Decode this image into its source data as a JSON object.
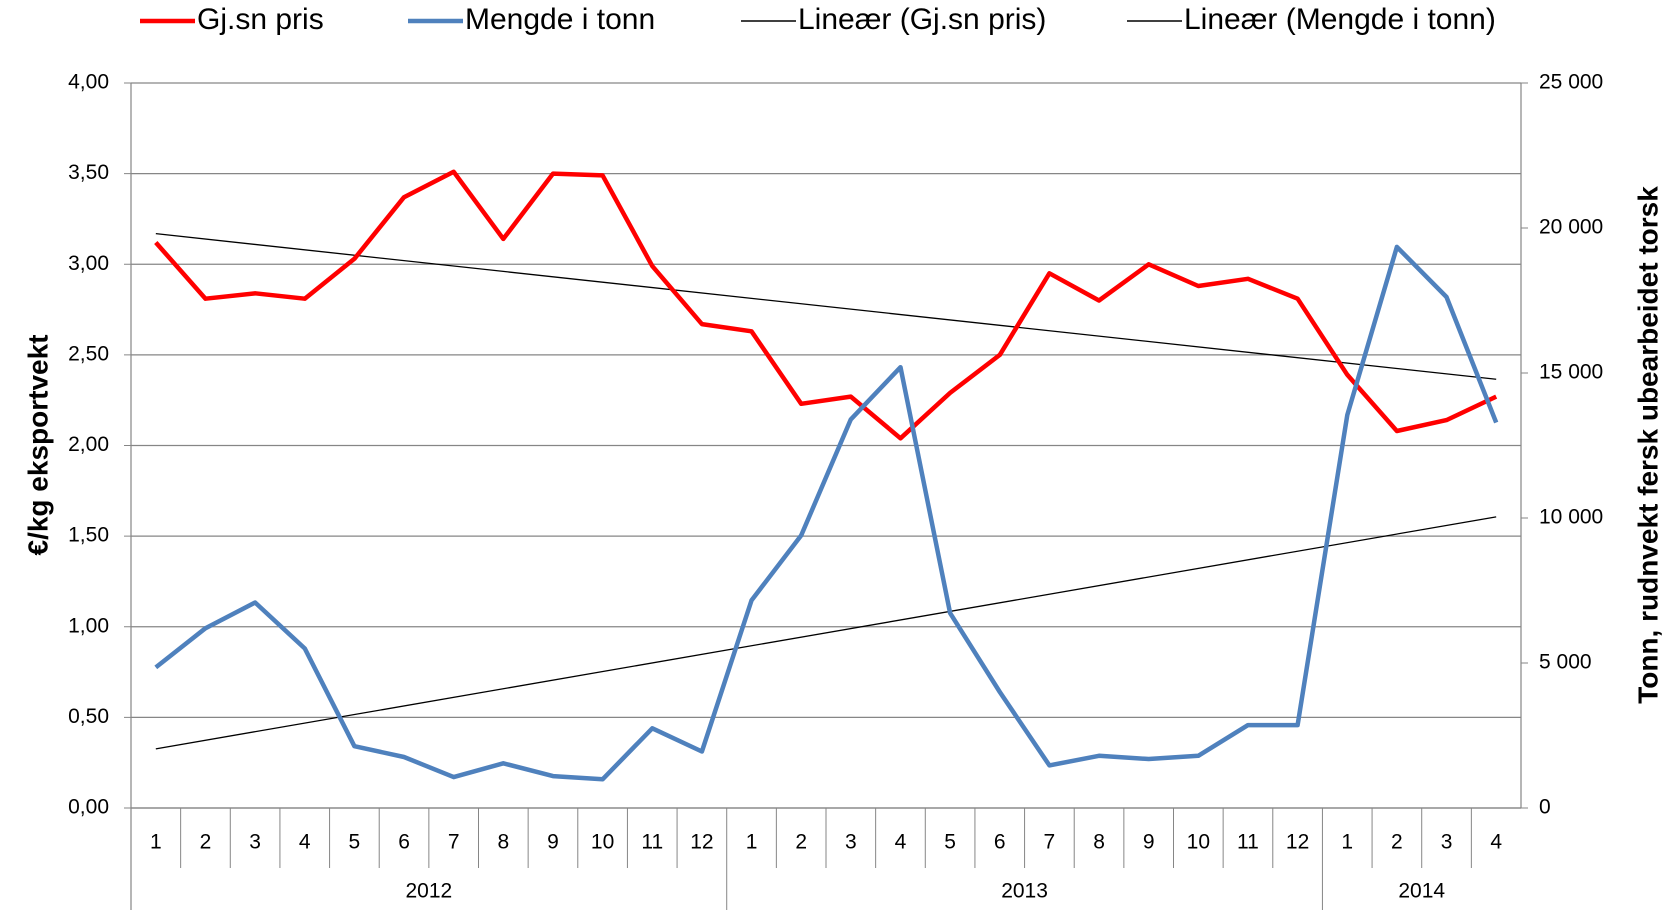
{
  "chart_data": {
    "type": "line",
    "categories": [
      "1",
      "2",
      "3",
      "4",
      "5",
      "6",
      "7",
      "8",
      "9",
      "10",
      "11",
      "12",
      "1",
      "2",
      "3",
      "4",
      "5",
      "6",
      "7",
      "8",
      "9",
      "10",
      "11",
      "12",
      "1",
      "2",
      "3",
      "4"
    ],
    "years": [
      "2012",
      "2013",
      "2014"
    ],
    "series": [
      {
        "name": "Gj.sn pris",
        "color": "#ff0000",
        "axis": "y",
        "values": [
          3.12,
          2.81,
          2.84,
          2.81,
          3.03,
          3.37,
          3.51,
          3.14,
          3.5,
          3.49,
          2.99,
          2.67,
          2.63,
          2.23,
          2.27,
          2.04,
          2.29,
          2.5,
          2.95,
          2.8,
          3.0,
          2.88,
          2.92,
          2.81,
          2.39,
          2.08,
          2.14,
          2.27
        ]
      },
      {
        "name": "Mengde i tonn",
        "color": "#4f81bd",
        "axis": "y2",
        "values": [
          4850,
          6200,
          7085,
          5500,
          2130,
          1760,
          1065,
          1540,
          1100,
          990,
          2750,
          1950,
          7160,
          9400,
          13400,
          15200,
          6720,
          4000,
          1470,
          1800,
          1690,
          1800,
          2860,
          2860,
          13550,
          19350,
          17620,
          13290
        ]
      }
    ],
    "trendlines": [
      {
        "name": "Lineær (Gj.sn pris)",
        "color": "#000000"
      },
      {
        "name": "Lineær (Mengde i tonn)",
        "color": "#000000"
      }
    ],
    "ylabel": "€/kg eksportvekt",
    "y2label": "Tonn, rudnvekt fersk ubearbeidet torsk",
    "ylim": [
      0,
      4
    ],
    "yticks": [
      {
        "value": 0,
        "label": "0,00"
      },
      {
        "value": 0.5,
        "label": "0,50"
      },
      {
        "value": 1,
        "label": "1,00"
      },
      {
        "value": 1.5,
        "label": "1,50"
      },
      {
        "value": 2,
        "label": "2,00"
      },
      {
        "value": 2.5,
        "label": "2,50"
      },
      {
        "value": 3,
        "label": "3,00"
      },
      {
        "value": 3.5,
        "label": "3,50"
      },
      {
        "value": 4,
        "label": "4,00"
      }
    ],
    "y2lim": [
      0,
      25000
    ],
    "y2ticks": [
      0,
      {
        "value": 5000,
        "label": "5 000"
      },
      {
        "value": 10000,
        "label": "10 000"
      },
      {
        "value": 15000,
        "label": "15 000"
      },
      {
        "value": 20000,
        "label": "20 000"
      },
      {
        "value": 25000,
        "label": "25 000"
      }
    ],
    "grid": true
  }
}
